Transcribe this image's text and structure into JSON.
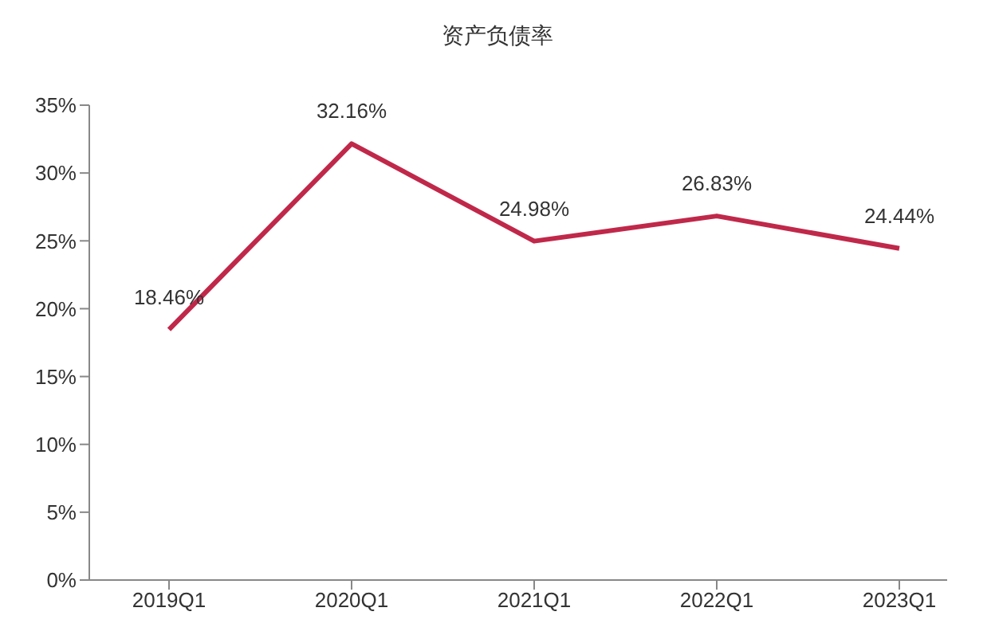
{
  "chart_data": {
    "type": "line",
    "title": "资产负债率",
    "categories": [
      "2019Q1",
      "2020Q1",
      "2021Q1",
      "2022Q1",
      "2023Q1"
    ],
    "series": [
      {
        "color": "#c0284a",
        "values": [
          18.46,
          32.16,
          24.98,
          26.83,
          24.44
        ]
      }
    ],
    "value_labels": [
      "18.46%",
      "32.16%",
      "24.98%",
      "26.83%",
      "24.44%"
    ],
    "ylim": [
      0,
      35
    ],
    "yticks": [
      {
        "value": 0,
        "label": "0%"
      },
      {
        "value": 5,
        "label": "5%"
      },
      {
        "value": 10,
        "label": "10%"
      },
      {
        "value": 15,
        "label": "15%"
      },
      {
        "value": 20,
        "label": "20%"
      },
      {
        "value": 25,
        "label": "25%"
      },
      {
        "value": 30,
        "label": "30%"
      },
      {
        "value": 35,
        "label": "35%"
      }
    ],
    "grid": false
  }
}
